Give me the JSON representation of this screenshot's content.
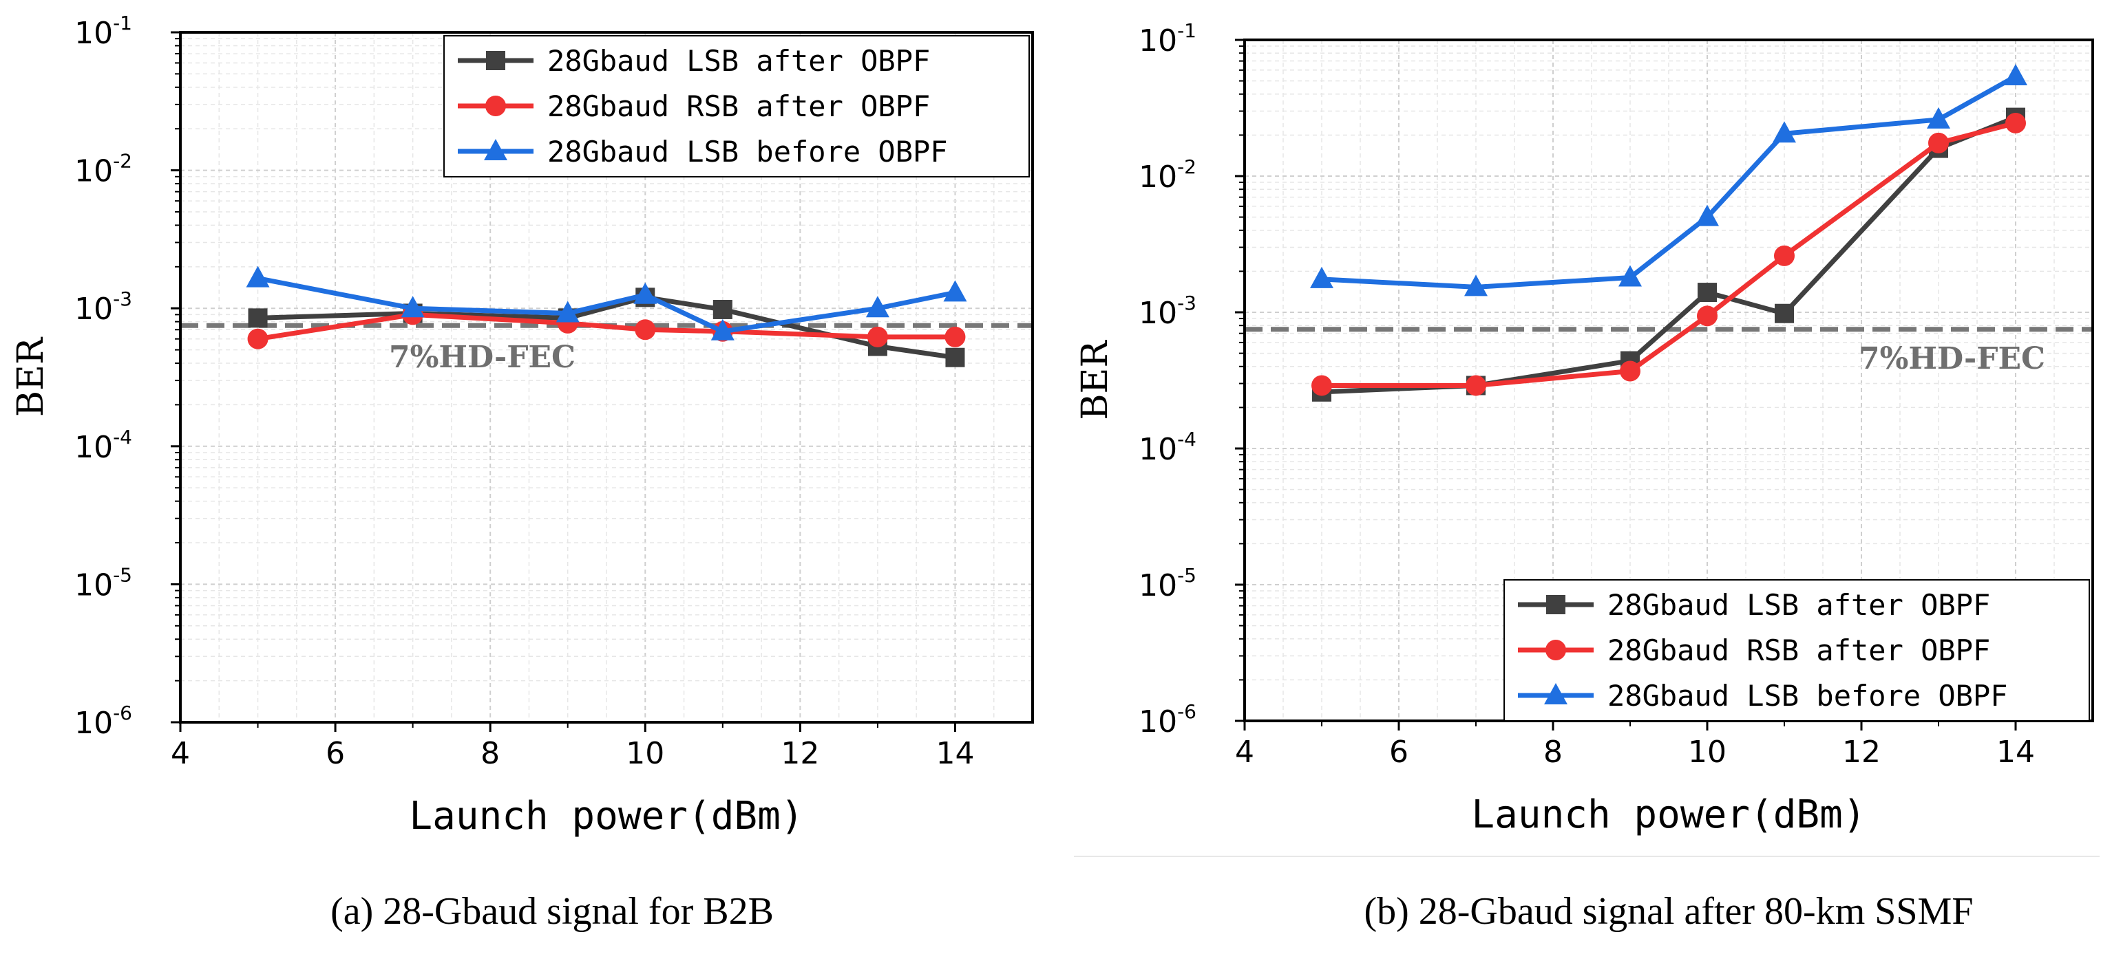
{
  "chart_data": [
    {
      "type": "line",
      "caption": "(a) 28-Gbaud signal for B2B",
      "xlabel": "Launch power(dBm)",
      "ylabel": "BER",
      "yscale": "log",
      "xlim": [
        4,
        15
      ],
      "ylim": [
        1e-06,
        0.1
      ],
      "xticks": [
        "4",
        "6",
        "8",
        "10",
        "12",
        "14"
      ],
      "yticks": [
        {
          "base": "10",
          "exp": "-6"
        },
        {
          "base": "10",
          "exp": "-5"
        },
        {
          "base": "10",
          "exp": "-4"
        },
        {
          "base": "10",
          "exp": "-3"
        },
        {
          "base": "10",
          "exp": "-2"
        },
        {
          "base": "10",
          "exp": "-1"
        }
      ],
      "grid": true,
      "legend_position": "top-right",
      "threshold": {
        "label": "7%HD-FEC",
        "value": 0.00075
      },
      "x": [
        5,
        7,
        9,
        10,
        11,
        13,
        14
      ],
      "series": [
        {
          "name": "28Gbaud LSB after OBPF",
          "color": "#404040",
          "marker": "square",
          "values": [
            0.00085,
            0.00092,
            0.00085,
            0.0012,
            0.00098,
            0.00053,
            0.00044
          ]
        },
        {
          "name": "28Gbaud RSB after OBPF",
          "color": "#f03232",
          "marker": "circle",
          "values": [
            0.0006,
            0.0009,
            0.00078,
            0.0007,
            0.00068,
            0.00062,
            0.00062
          ]
        },
        {
          "name": "28Gbaud LSB before OBPF",
          "color": "#1f6fe0",
          "marker": "triangle",
          "values": [
            0.00165,
            0.001,
            0.00092,
            0.00125,
            0.00068,
            0.001,
            0.0013
          ]
        }
      ]
    },
    {
      "type": "line",
      "caption": "(b) 28-Gbaud signal after 80-km SSMF",
      "xlabel": "Launch power(dBm)",
      "ylabel": "BER",
      "yscale": "log",
      "xlim": [
        4,
        15
      ],
      "ylim": [
        1e-06,
        0.1
      ],
      "xticks": [
        "4",
        "6",
        "8",
        "10",
        "12",
        "14"
      ],
      "yticks": [
        {
          "base": "10",
          "exp": "-6"
        },
        {
          "base": "10",
          "exp": "-5"
        },
        {
          "base": "10",
          "exp": "-4"
        },
        {
          "base": "10",
          "exp": "-3"
        },
        {
          "base": "10",
          "exp": "-2"
        },
        {
          "base": "10",
          "exp": "-1"
        }
      ],
      "grid": true,
      "legend_position": "bottom-right",
      "threshold": {
        "label": "7%HD-FEC",
        "value": 0.00075
      },
      "x": [
        5,
        7,
        9,
        10,
        11,
        13,
        14
      ],
      "series": [
        {
          "name": "28Gbaud LSB after OBPF",
          "color": "#404040",
          "marker": "square",
          "values": [
            0.00026,
            0.00029,
            0.00044,
            0.0014,
            0.00098,
            0.016,
            0.027
          ]
        },
        {
          "name": "28Gbaud RSB after OBPF",
          "color": "#f03232",
          "marker": "circle",
          "values": [
            0.00029,
            0.00029,
            0.00037,
            0.00094,
            0.0026,
            0.0175,
            0.0245
          ]
        },
        {
          "name": "28Gbaud LSB before OBPF",
          "color": "#1f6fe0",
          "marker": "triangle",
          "values": [
            0.00175,
            0.00153,
            0.0018,
            0.005,
            0.0205,
            0.026,
            0.054
          ]
        }
      ]
    }
  ]
}
